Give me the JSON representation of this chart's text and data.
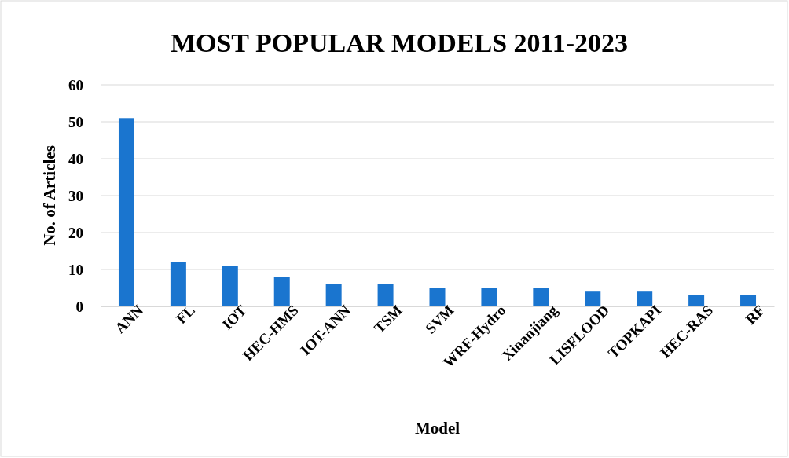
{
  "chart_data": {
    "type": "bar",
    "title": "MOST POPULAR MODELS 2011-2023",
    "xlabel": "Model",
    "ylabel": "No. of Articles",
    "categories": [
      "ANN",
      "FL",
      "IOT",
      "HEC-HMS",
      "IOT-ANN",
      "TSM",
      "SVM",
      "WRF-Hydro",
      "Xinanjiang",
      "LISFLOOD",
      "TOPKAPI",
      "HEC-RAS",
      "RF"
    ],
    "values": [
      51,
      12,
      11,
      8,
      6,
      6,
      5,
      5,
      5,
      4,
      4,
      3,
      3
    ],
    "color": "#1a75cf",
    "ylim": [
      0,
      60
    ],
    "yticks": [
      0,
      10,
      20,
      30,
      40,
      50,
      60
    ],
    "grid": "y"
  }
}
